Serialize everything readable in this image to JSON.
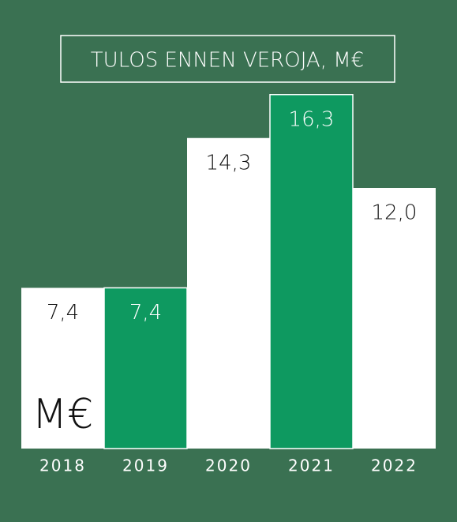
{
  "chart_data": {
    "type": "bar",
    "title": "TULOS ENNEN VEROJA, M€",
    "categories": [
      "2018",
      "2019",
      "2020",
      "2021",
      "2022"
    ],
    "values": [
      7.4,
      7.4,
      14.3,
      16.3,
      12.0
    ],
    "value_labels": [
      "7,4",
      "7,4",
      "14,3",
      "16,3",
      "12,0"
    ],
    "colors": [
      "#ffffff",
      "#0e9960",
      "#ffffff",
      "#0e9960",
      "#ffffff"
    ],
    "unit_label": "M€"
  }
}
